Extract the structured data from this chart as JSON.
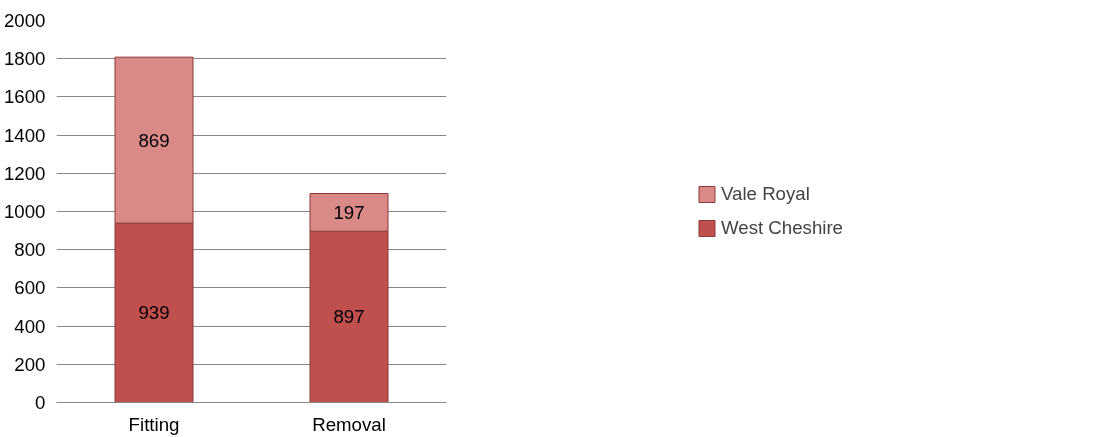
{
  "chart_data": {
    "type": "bar",
    "stacked": true,
    "categories": [
      "Fitting",
      "Removal"
    ],
    "series": [
      {
        "name": "West Cheshire",
        "color": "#c0504d",
        "values": [
          939,
          897
        ]
      },
      {
        "name": "Vale Royal",
        "color": "#d98a88",
        "values": [
          869,
          197
        ]
      }
    ],
    "ylim": [
      0,
      2000
    ],
    "yticks": [
      0,
      200,
      400,
      600,
      800,
      1000,
      1200,
      1400,
      1600,
      1800,
      2000
    ],
    "grid": "y",
    "legend": "right",
    "data_labels": true
  }
}
